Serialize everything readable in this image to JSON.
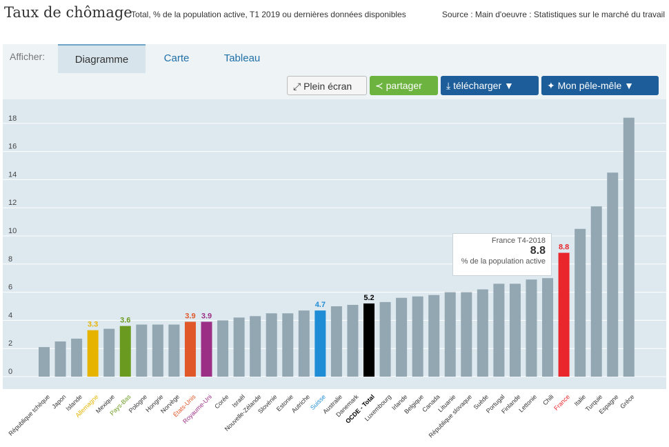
{
  "header": {
    "title": "Taux de chômage",
    "subtitle": "Total, % de la population active, T1 2019 ou dernières données disponibles",
    "source": "Source : Main d'oeuvre : Statistiques sur le marché du travail"
  },
  "toolbar": {
    "afficher_label": "Afficher:",
    "tabs": [
      "Diagramme",
      "Carte",
      "Tableau"
    ],
    "plein_ecran": "Plein écran",
    "partager": "partager",
    "telecharger": "télécharger ▼",
    "pele_mele": "Mon pêle-mêle ▼"
  },
  "tooltip": {
    "title": "France T4-2018",
    "value": "8.8",
    "unit": "% de la population active"
  },
  "colors": {
    "default_bar": "#93a7b3",
    "grid": "#ffffff",
    "allemagne": "#e6b400",
    "pays_bas": "#6a9a1f",
    "etats_unis": "#e0582a",
    "royaume_uni": "#9b2f85",
    "suisse": "#1f8dd6",
    "ocde": "#000000",
    "france": "#e8262c"
  },
  "chart_data": {
    "type": "bar",
    "ylim": [
      0,
      18.6
    ],
    "yticks": [
      0,
      2,
      4,
      6,
      8,
      10,
      12,
      14,
      16,
      18
    ],
    "grid": true,
    "categories": [
      "République tchèque",
      "Japon",
      "Islande",
      "Allemagne",
      "Mexique",
      "Pays-Bas",
      "Pologne",
      "Hongrie",
      "Norvège",
      "États-Unis",
      "Royaume-Uni",
      "Corée",
      "Israël",
      "Nouvelle-Zélande",
      "Slovénie",
      "Estonie",
      "Autriche",
      "Suisse",
      "Australie",
      "Danemark",
      "OCDE - Total",
      "Luxembourg",
      "Irlande",
      "Belgique",
      "Canada",
      "Lituanie",
      "République slovaque",
      "Suède",
      "Portugal",
      "Finlande",
      "Lettonie",
      "Chili",
      "France",
      "Italie",
      "Turquie",
      "Espagne",
      "Grèce"
    ],
    "values": [
      2.1,
      2.5,
      2.7,
      3.3,
      3.4,
      3.6,
      3.7,
      3.7,
      3.7,
      3.9,
      3.9,
      4.0,
      4.2,
      4.3,
      4.5,
      4.5,
      4.7,
      4.7,
      5.0,
      5.1,
      5.2,
      5.3,
      5.6,
      5.7,
      5.8,
      6.0,
      6.0,
      6.2,
      6.6,
      6.6,
      6.9,
      7.0,
      8.8,
      10.5,
      12.1,
      14.5,
      18.4
    ],
    "highlights": [
      {
        "index": 3,
        "label": "3.3",
        "color": "#e6b400"
      },
      {
        "index": 5,
        "label": "3.6",
        "color": "#6a9a1f"
      },
      {
        "index": 9,
        "label": "3.9",
        "color": "#e0582a"
      },
      {
        "index": 10,
        "label": "3.9",
        "color": "#9b2f85"
      },
      {
        "index": 17,
        "label": "4.7",
        "color": "#1f8dd6"
      },
      {
        "index": 20,
        "label": "5.2",
        "color": "#000000"
      },
      {
        "index": 32,
        "label": "8.8",
        "color": "#e8262c"
      }
    ]
  }
}
